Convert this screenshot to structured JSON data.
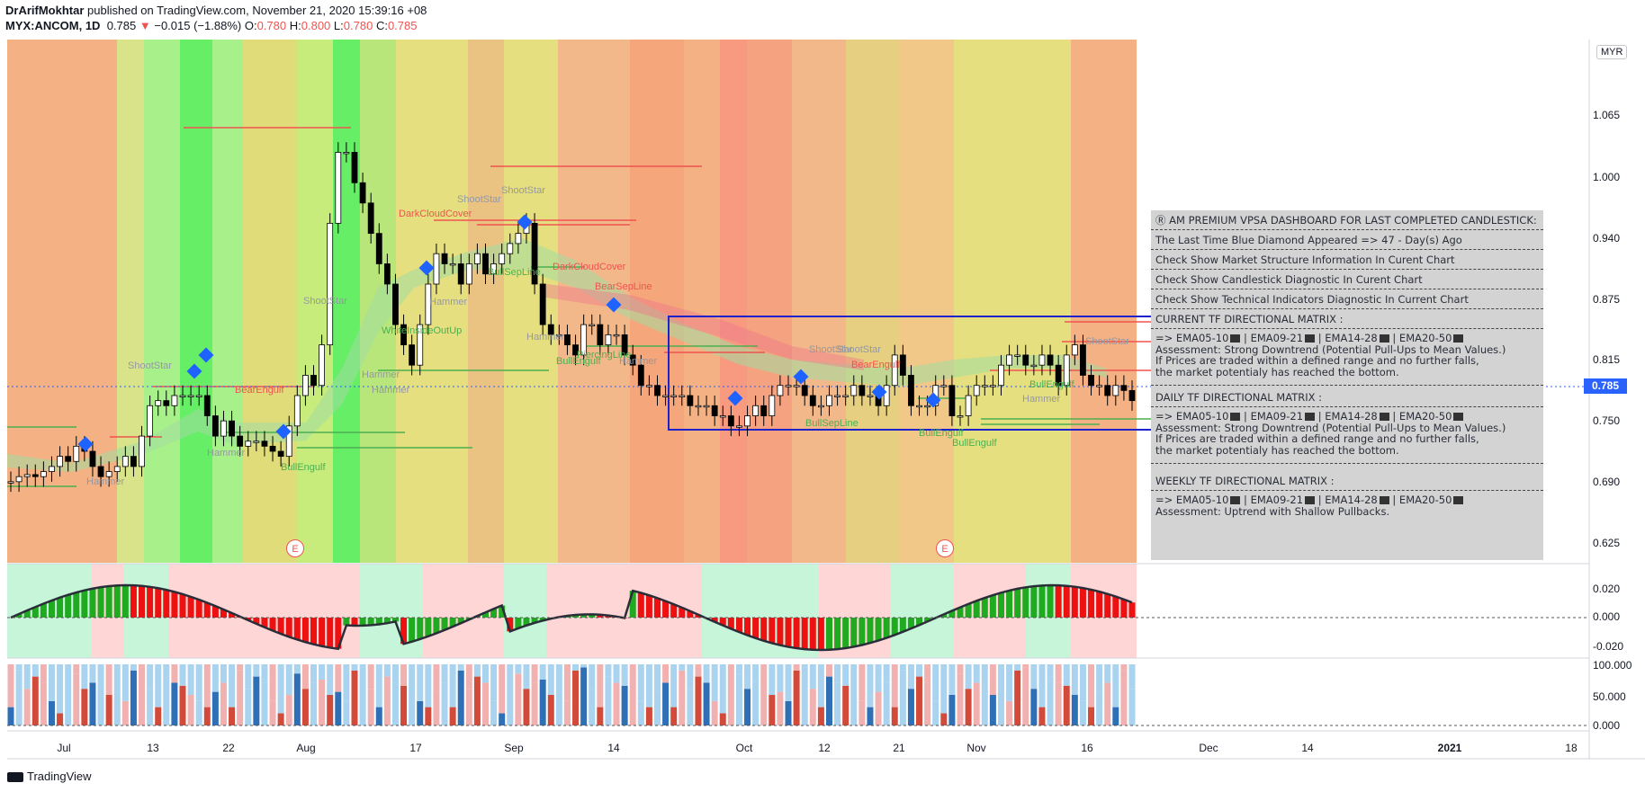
{
  "header": {
    "author": "DrArifMokhtar",
    "published": " published on TradingView.com, November 21, 2020 15:39:16 +08",
    "symbol": "MYX:ANCOM, 1D",
    "last": "0.785",
    "change": "−0.015 (−1.88%)",
    "o_label": "O:",
    "o_value": "0.780",
    "h_label": "H:",
    "h_value": "0.800",
    "l_label": "L:",
    "l_value": "0.780",
    "c_label": "C:",
    "c_value": "0.785"
  },
  "price_axis": {
    "currency": "MYR",
    "ticks": [
      "1.065",
      "1.000",
      "0.940",
      "0.875",
      "0.815",
      "0.750",
      "0.690",
      "0.625"
    ],
    "current_price": "0.785"
  },
  "osc_axis": {
    "ticks": [
      "0.020",
      "0.000",
      "-0.020"
    ]
  },
  "pct_axis": {
    "ticks": [
      "100.000",
      "50.000",
      "0.000"
    ]
  },
  "time_axis": {
    "ticks": [
      "Jul",
      "13",
      "22",
      "Aug",
      "17",
      "Sep",
      "14",
      "Oct",
      "12",
      "21",
      "Nov",
      "16",
      "Dec",
      "14",
      "2021",
      "18"
    ]
  },
  "pattern_labels": {
    "hammer1": "Hammer",
    "shootstar1": "ShootStar",
    "hammer2": "Hammer",
    "bearengulf1": "BearEngulf",
    "bullengulf1": "BullEngulf",
    "shootstar2": "ShootStar",
    "hammer3": "Hammer",
    "whiteinside": "WhiteInsideOutUp",
    "hammer4": "Hammer",
    "darkcloud1": "DarkCloudCover",
    "shootstar3": "ShootStar",
    "shootstar4": "ShootStar",
    "hammer5": "Hammer",
    "bullsepline1": "BullSepLine",
    "darkcloud2": "DarkCloudCover",
    "bearsepline": "BearSepLine",
    "hammer6": "Hammer",
    "bullengulf2": "BullEngulf",
    "piercing": "PiercingLine",
    "hammer7": "Hammer",
    "shootstar5": "ShootStar",
    "shootstar6": "ShootStar",
    "bearengulf2": "BearEngulf",
    "bullsepline2": "BullSepLine",
    "bullengulf3": "BullEngulf",
    "bullengulf4": "BullEngulf",
    "bullengulf5": "BullEngulf",
    "hammer8": "Hammer",
    "shootstar7": "ShootStar",
    "earnings": "E"
  },
  "dashboard": {
    "title": "Ⓡ AM PREMIUM VPSA DASHBOARD FOR LAST COMPLETED CANDLESTICK:",
    "blue_diamond": "The Last Time Blue Diamond Appeared => 47 - Day(s) Ago",
    "check1": "Check Show Market Structure Information In Curent Chart",
    "check2": "Check Show Candlestick Diagnostic In Curent Chart",
    "check3": "Check Show Technical Indicators Diagnostic In Current Chart",
    "current_title": "CURRENT TF DIRECTIONAL MATRIX :",
    "current_ema": " => EMA05-10",
    "current_assess": "Assessment: Strong Downtrend (Potential Pull-Ups to Mean Values.)",
    "current_note1": "If Prices are traded within a defined range and no further falls,",
    "current_note2": "the market potentialy has reached the bottom.",
    "daily_title": "DAILY TF DIRECTIONAL MATRIX :",
    "daily_ema": " => EMA05-10",
    "daily_assess": "Assessment: Strong Downtrend (Potential Pull-Ups to Mean Values.)",
    "daily_note1": "If Prices are traded within a defined range and no further falls,",
    "daily_note2": "the market potentialy has reached the bottom.",
    "weekly_title": "WEEKLY TF DIRECTIONAL MATRIX :",
    "weekly_ema": " => EMA05-10",
    "weekly_assess": "Assessment: Uptrend with Shallow Pullbacks.",
    "ema2": " | EMA09-21",
    "ema3": " | EMA14-28",
    "ema4": " | EMA20-50"
  },
  "footer": {
    "brand": "TradingView"
  },
  "colors": {
    "up": "#ffffff",
    "down": "#000000",
    "accent": "#2962ff",
    "bull": "#4caf50",
    "bear": "#ef5350"
  }
}
